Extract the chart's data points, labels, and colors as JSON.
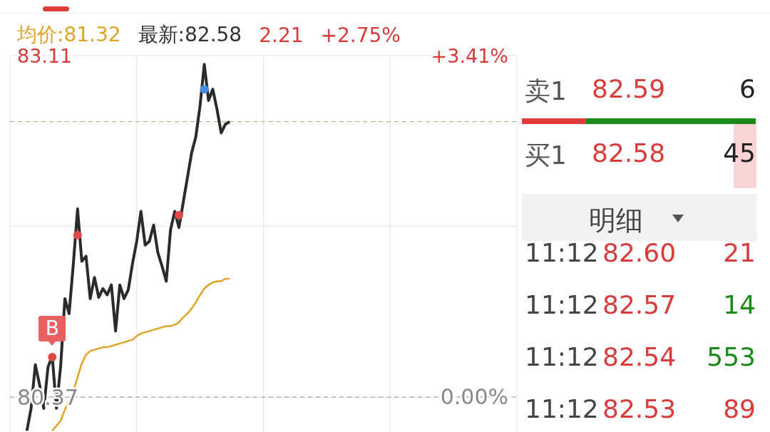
{
  "chart_data": [
    {
      "type": "line",
      "categories": [
        null,
        null,
        null,
        null,
        null,
        null,
        null,
        null,
        null,
        null,
        null,
        null,
        null,
        null,
        null,
        null,
        null,
        null,
        null,
        null,
        null,
        null,
        null,
        null,
        null,
        null,
        null,
        null,
        null,
        null,
        null,
        null,
        null,
        null,
        null,
        null,
        null,
        null,
        null,
        null,
        null,
        null,
        null,
        null,
        null,
        null,
        null,
        null,
        null,
        null,
        null,
        null,
        null,
        null,
        null,
        null,
        null,
        null,
        null,
        null,
        null,
        null,
        null,
        null,
        null,
        null,
        null,
        null,
        null,
        null,
        null,
        null,
        null,
        null,
        null,
        null,
        null,
        null,
        null,
        null,
        null,
        null,
        null,
        null,
        null,
        null,
        null,
        null,
        null,
        null,
        null,
        null,
        null,
        null,
        null,
        null,
        null,
        null,
        null,
        null,
        null,
        null,
        null,
        null,
        null,
        null,
        null,
        null,
        null,
        null,
        null,
        null,
        null,
        null,
        null,
        null,
        null,
        null,
        null,
        null,
        null
      ],
      "series": [
        {
          "type": "line",
          "color": "#2b2b2b",
          "values": [
            null,
            null,
            null,
            null,
            80.1,
            80.28,
            80.63,
            80.47,
            80.28,
            80.61,
            80.7,
            80.28,
            80.62,
            81.16,
            81.04,
            81.44,
            81.88,
            81.46,
            81.5,
            81.16,
            81.33,
            81.17,
            81.24,
            81.19,
            81.27,
            80.9,
            81.27,
            81.16,
            81.23,
            81.44,
            81.62,
            81.86,
            81.59,
            81.62,
            81.75,
            81.53,
            81.42,
            81.3,
            81.71,
            81.86,
            81.73,
            81.93,
            82.13,
            82.33,
            82.46,
            82.71,
            83.04,
            82.75,
            82.84,
            82.68,
            82.49,
            82.56,
            82.58,
            null,
            null,
            null,
            null,
            null,
            null,
            null,
            null,
            null,
            null,
            null,
            null,
            null,
            null,
            null,
            null,
            null,
            null,
            null,
            null,
            null,
            null,
            null,
            null,
            null,
            null,
            null,
            null,
            null,
            null,
            null,
            null,
            null,
            null,
            null,
            null,
            null,
            null,
            null,
            null,
            null,
            null,
            null,
            null,
            null,
            null,
            null,
            null,
            null,
            null,
            null,
            null,
            null,
            null,
            null,
            null,
            null,
            null,
            null,
            null,
            null,
            null,
            null,
            null,
            null,
            null,
            null,
            null
          ]
        },
        {
          "type": "line",
          "color": "#e0a326",
          "values": [
            null,
            null,
            null,
            null,
            null,
            null,
            null,
            null,
            null,
            null,
            80.1,
            80.14,
            80.18,
            80.27,
            80.34,
            80.42,
            80.53,
            80.64,
            80.71,
            80.74,
            80.75,
            80.76,
            80.77,
            80.77,
            80.78,
            80.79,
            80.8,
            80.81,
            80.82,
            80.83,
            80.86,
            80.88,
            80.89,
            80.9,
            80.91,
            80.92,
            80.93,
            80.94,
            80.94,
            80.95,
            80.97,
            81.01,
            81.04,
            81.08,
            81.13,
            81.19,
            81.24,
            81.27,
            81.29,
            81.3,
            81.3,
            81.32,
            81.32,
            null,
            null,
            null,
            null,
            null,
            null,
            null,
            null,
            null,
            null,
            null,
            null,
            null,
            null,
            null,
            null,
            null,
            null,
            null,
            null,
            null,
            null,
            null,
            null,
            null,
            null,
            null,
            null,
            null,
            null,
            null,
            null,
            null,
            null,
            null,
            null,
            null,
            null,
            null,
            null,
            null,
            null,
            null,
            null,
            null,
            null,
            null,
            null,
            null,
            null,
            null,
            null,
            null,
            null,
            null,
            null,
            null,
            null,
            null,
            null,
            null,
            null,
            null,
            null,
            null,
            null,
            null,
            null
          ]
        },
        {
          "type": "scatter",
          "marker": "circle",
          "color": "#e04848",
          "values": [
            null,
            null,
            null,
            null,
            null,
            null,
            null,
            null,
            null,
            null,
            80.69,
            null,
            null,
            null,
            null,
            null,
            81.67,
            null,
            null,
            null,
            null,
            null,
            null,
            null,
            null,
            null,
            null,
            null,
            null,
            null,
            null,
            null,
            null,
            null,
            null,
            null,
            null,
            null,
            null,
            null,
            81.83,
            null,
            null,
            null,
            null,
            null,
            null,
            null,
            null,
            null,
            null,
            null,
            null,
            null,
            null,
            null,
            null,
            null,
            null,
            null,
            null,
            null,
            null,
            null,
            null,
            null,
            null,
            null,
            null,
            null,
            null,
            null,
            null,
            null,
            null,
            null,
            null,
            null,
            null,
            null,
            null,
            null,
            null,
            null,
            null,
            null,
            null,
            null,
            null,
            null,
            null,
            null,
            null,
            null,
            null,
            null,
            null,
            null,
            null,
            null,
            null,
            null,
            null,
            null,
            null,
            null,
            null,
            null,
            null,
            null,
            null,
            null,
            null,
            null,
            null,
            null,
            null,
            null,
            null,
            null,
            null
          ]
        },
        {
          "type": "scatter",
          "marker": "circle",
          "color": "#4a8de0",
          "values": [
            null,
            null,
            null,
            null,
            null,
            null,
            null,
            null,
            null,
            null,
            null,
            null,
            null,
            null,
            null,
            null,
            null,
            null,
            null,
            null,
            null,
            null,
            null,
            null,
            null,
            null,
            null,
            null,
            null,
            null,
            null,
            null,
            null,
            null,
            null,
            null,
            null,
            null,
            null,
            null,
            null,
            null,
            null,
            null,
            null,
            null,
            82.84,
            null,
            null,
            null,
            null,
            null,
            null,
            null,
            null,
            null,
            null,
            null,
            null,
            null,
            null,
            null,
            null,
            null,
            null,
            null,
            null,
            null,
            null,
            null,
            null,
            null,
            null,
            null,
            null,
            null,
            null,
            null,
            null,
            null,
            null,
            null,
            null,
            null,
            null,
            null,
            null,
            null,
            null,
            null,
            null,
            null,
            null,
            null,
            null,
            null,
            null,
            null,
            null,
            null,
            null,
            null,
            null,
            null,
            null,
            null,
            null,
            null,
            null,
            null,
            null,
            null,
            null,
            null,
            null,
            null,
            null,
            null,
            null,
            null,
            null
          ]
        }
      ],
      "ylim": [
        80.09,
        83.11
      ],
      "yticks": [
        83.11,
        {
          "value": 81.74,
          "label": null
        },
        80.37
      ],
      "y2lim": [
        -0.35,
        3.41
      ],
      "y2ticks": [
        {
          "value": 3.41,
          "label": "+3.41%"
        },
        {
          "value": 0,
          "label": "0.00%"
        }
      ],
      "ref_lines": [
        {
          "axis": "y",
          "value": 82.58,
          "color": "#b8a07a",
          "line_style": "dashed"
        },
        {
          "axis": "y",
          "value": 80.37,
          "color": "#999999",
          "line_style": "dashed"
        }
      ],
      "grid": true,
      "annotations": [
        "均价:81.32",
        "最新:82.58",
        "2.21",
        "+2.75%",
        "B"
      ]
    },
    {
      "type": "other",
      "annotations": [
        "卖1",
        "82.59",
        "6",
        "买1",
        "82.58",
        "45",
        "明细",
        "11:12",
        "82.60",
        "21",
        "11:12",
        "82.57",
        "14",
        "11:12",
        "82.54",
        "553",
        "11:12",
        "82.53",
        "89"
      ],
      "colors": [
        "#555555",
        "#d93a3a",
        "#222222",
        "#555555",
        "#d93a3a",
        "#222222",
        "#444444",
        "#444444",
        "#d93a3a",
        "#d93a3a",
        "#444444",
        "#d93a3a",
        "#1a8a1a",
        "#444444",
        "#d93a3a",
        "#1a8a1a",
        "#444444",
        "#d93a3a",
        "#d93a3a"
      ]
    }
  ]
}
